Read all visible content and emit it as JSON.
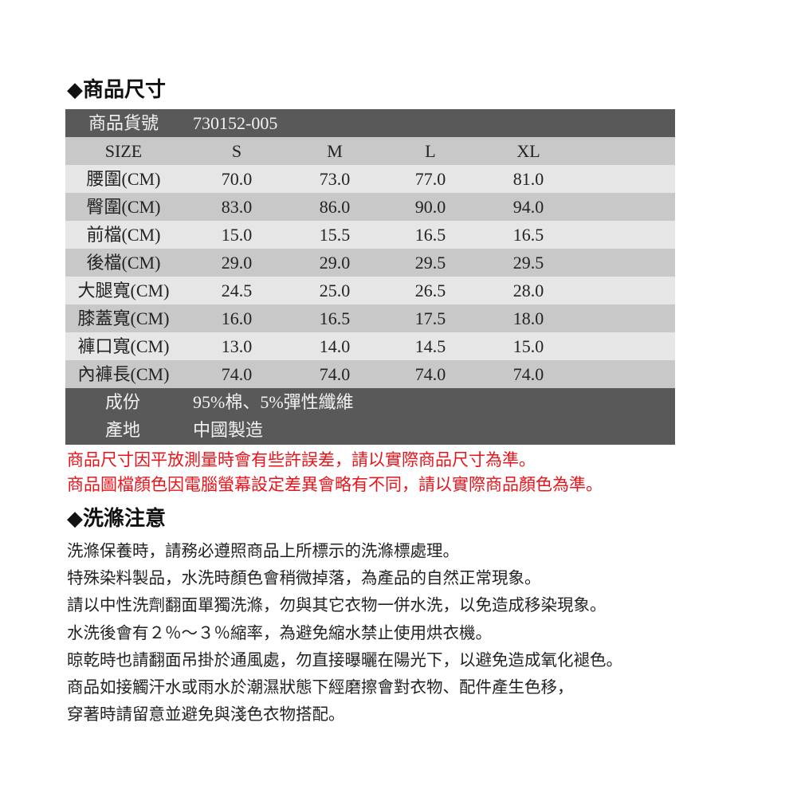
{
  "size_section": {
    "title": "◆商品尺寸",
    "item_no_label": "商品貨號",
    "item_no": "730152-005",
    "size_header": [
      "SIZE",
      "S",
      "M",
      "L",
      "XL"
    ],
    "rows": [
      {
        "label": "腰圍(CM)",
        "values": [
          "70.0",
          "73.0",
          "77.0",
          "81.0"
        ]
      },
      {
        "label": "臀圍(CM)",
        "values": [
          "83.0",
          "86.0",
          "90.0",
          "94.0"
        ]
      },
      {
        "label": "前檔(CM)",
        "values": [
          "15.0",
          "15.5",
          "16.5",
          "16.5"
        ]
      },
      {
        "label": "後檔(CM)",
        "values": [
          "29.0",
          "29.0",
          "29.5",
          "29.5"
        ]
      },
      {
        "label": "大腿寬(CM)",
        "values": [
          "24.5",
          "25.0",
          "26.5",
          "28.0"
        ]
      },
      {
        "label": "膝蓋寬(CM)",
        "values": [
          "16.0",
          "16.5",
          "17.5",
          "18.0"
        ]
      },
      {
        "label": "褲口寬(CM)",
        "values": [
          "13.0",
          "14.0",
          "14.5",
          "15.0"
        ]
      },
      {
        "label": "內褲長(CM)",
        "values": [
          "74.0",
          "74.0",
          "74.0",
          "74.0"
        ]
      }
    ],
    "composition_label": "成份",
    "composition": "95%棉、5%彈性纖維",
    "origin_label": "產地",
    "origin": "中國製造",
    "notes": [
      "商品尺寸因平放測量時會有些許誤差，請以實際商品尺寸為準。",
      "商品圖檔顏色因電腦螢幕設定差異會略有不同，請以實際商品顏色為準。"
    ]
  },
  "care_section": {
    "title": "◆洗滌注意",
    "lines": [
      "洗滌保養時，請務必遵照商品上所標示的洗滌標處理。",
      "特殊染料製品，水洗時顏色會稍微掉落，為產品的自然正常現象。",
      "請以中性洗劑翻面單獨洗滌，勿與其它衣物一併水洗，以免造成移染現象。",
      "水洗後會有２％～３％縮率，為避免縮水禁止使用烘衣機。",
      "晾乾時也請翻面吊掛於通風處，勿直接曝曬在陽光下，以避免造成氧化褪色。",
      "商品如接觸汗水或雨水於潮濕狀態下經磨擦會對衣物、配件產生色移，",
      "穿著時請留意並避免與淺色衣物搭配。"
    ]
  },
  "colors": {
    "dark_row": "#595959",
    "mid_row": "#c8c8c8",
    "light_row": "#e6e6e6",
    "note_red": "#e8141b"
  }
}
